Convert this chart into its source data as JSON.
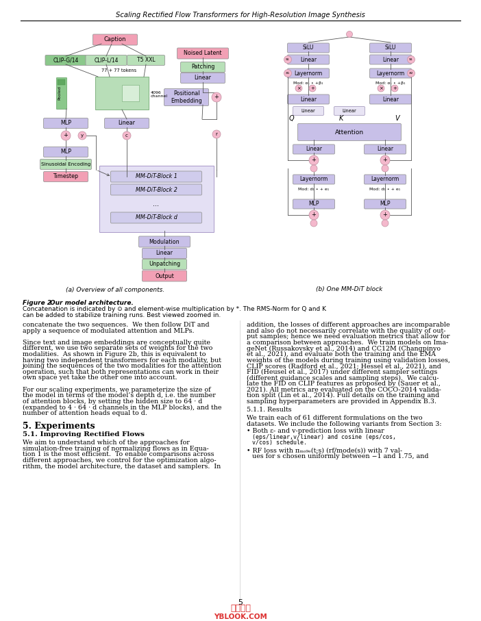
{
  "page_title": "Scaling Rectified Flow Transformers for High-Resolution Image Synthesis",
  "page_number": "5",
  "fig_caption_a": "(a) Overview of all components.",
  "fig_caption_b": "(b) One MM-DiT block",
  "colors": {
    "pink_box": "#F2A0B5",
    "green_box": "#8BC88B",
    "light_green_box": "#B8E0B8",
    "lavender_box": "#C8C0E8",
    "light_lavender_bg": "#E0DCF4",
    "white_box": "#FFFFFF",
    "light_pink_circle": "#F4B8CC",
    "bg_color": "#FFFFFF",
    "line_color": "#555555",
    "border_color": "#888888",
    "mmt_bg": "#E4E0F4",
    "mmt_border": "#A898C8"
  }
}
